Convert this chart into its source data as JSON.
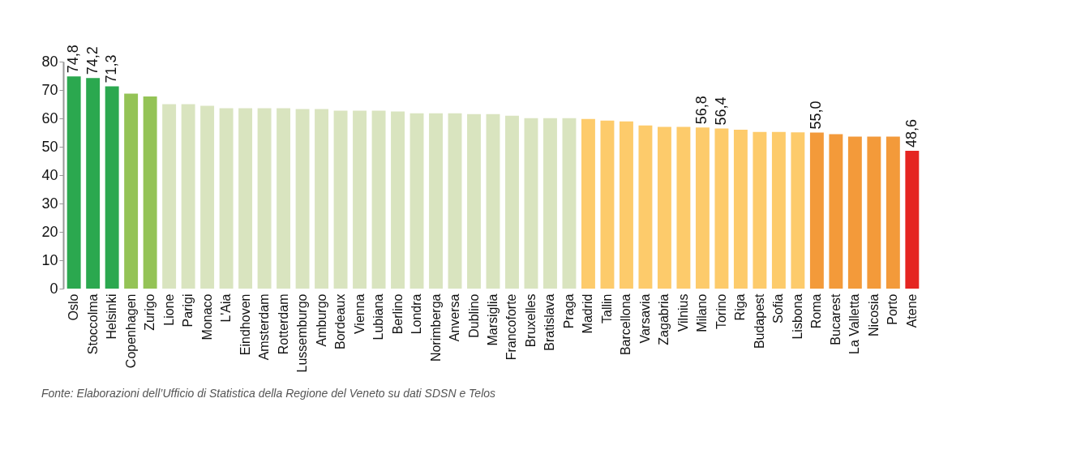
{
  "chart_data": {
    "type": "bar",
    "categories": [
      "Oslo",
      "Stoccolma",
      "Helsinki",
      "Copenhagen",
      "Zurigo",
      "Lione",
      "Parigi",
      "Monaco",
      "L'Aia",
      "Eindhoven",
      "Amsterdam",
      "Rotterdam",
      "Lussemburgo",
      "Amburgo",
      "Bordeaux",
      "Vienna",
      "Lubiana",
      "Berlino",
      "Londra",
      "Norimberga",
      "Anversa",
      "Dublino",
      "Marsiglia",
      "Francoforte",
      "Bruxelles",
      "Bratislava",
      "Praga",
      "Madrid",
      "Tallin",
      "Barcellona",
      "Varsavia",
      "Zagabria",
      "Vilnius",
      "Milano",
      "Torino",
      "Riga",
      "Budapest",
      "Sofia",
      "Lisbona",
      "Roma",
      "Bucarest",
      "La Valletta",
      "Nicosia",
      "Porto",
      "Atene"
    ],
    "values": [
      74.8,
      74.2,
      71.3,
      68.7,
      67.7,
      65.0,
      65.0,
      64.4,
      63.6,
      63.6,
      63.6,
      63.6,
      63.3,
      63.3,
      62.7,
      62.7,
      62.7,
      62.4,
      61.8,
      61.8,
      61.8,
      61.5,
      61.5,
      60.9,
      60.1,
      60.1,
      60.1,
      59.8,
      59.2,
      58.9,
      57.5,
      57.0,
      57.0,
      56.8,
      56.4,
      56.0,
      55.2,
      55.2,
      55.1,
      55.0,
      54.4,
      53.6,
      53.6,
      53.6,
      48.6
    ],
    "value_labels": [
      "74,8",
      "74,2",
      "71,3",
      null,
      null,
      null,
      null,
      null,
      null,
      null,
      null,
      null,
      null,
      null,
      null,
      null,
      null,
      null,
      null,
      null,
      null,
      null,
      null,
      null,
      null,
      null,
      null,
      null,
      null,
      null,
      null,
      null,
      null,
      "56,8",
      "56,4",
      null,
      null,
      null,
      null,
      "55,0",
      null,
      null,
      null,
      null,
      "48,6"
    ],
    "colors": [
      "#2ba84f",
      "#2ba84f",
      "#2ba84f",
      "#94c356",
      "#94c356",
      "#d9e4bf",
      "#d9e4bf",
      "#d9e4bf",
      "#d9e4bf",
      "#d9e4bf",
      "#d9e4bf",
      "#d9e4bf",
      "#d9e4bf",
      "#d9e4bf",
      "#d9e4bf",
      "#d9e4bf",
      "#d9e4bf",
      "#d9e4bf",
      "#d9e4bf",
      "#d9e4bf",
      "#d9e4bf",
      "#d9e4bf",
      "#d9e4bf",
      "#d9e4bf",
      "#d9e4bf",
      "#d9e4bf",
      "#d9e4bf",
      "#fdcb6b",
      "#fdcb6b",
      "#fdcb6b",
      "#fdcb6b",
      "#fdcb6b",
      "#fdcb6b",
      "#fdcb6b",
      "#fdcb6b",
      "#fdcb6b",
      "#fdcb6b",
      "#fdcb6b",
      "#fdcb6b",
      "#f39a3a",
      "#f39a3a",
      "#f39a3a",
      "#f39a3a",
      "#f39a3a",
      "#e52521"
    ],
    "ylim": [
      0,
      80
    ],
    "yticks": [
      0,
      10,
      20,
      30,
      40,
      50,
      60,
      70,
      80
    ],
    "grid": false,
    "legend": false,
    "annotations": [
      "Fonte: Elaborazioni dell’Ufficio di Statistica della Regione del Veneto su dati SDSN e Telos"
    ]
  }
}
